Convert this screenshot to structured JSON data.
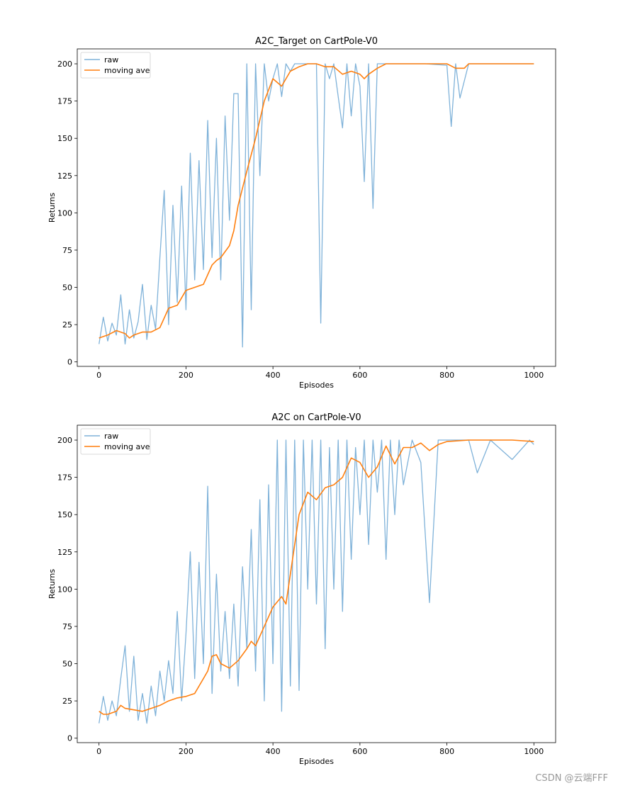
{
  "chart_data": [
    {
      "type": "line",
      "title": "A2C_Target on CartPole-V0",
      "xlabel": "Episodes",
      "ylabel": "Returns",
      "xlim": [
        -50,
        1050
      ],
      "ylim": [
        -3,
        210
      ],
      "xticks": [
        0,
        200,
        400,
        600,
        800,
        1000
      ],
      "yticks": [
        0,
        25,
        50,
        75,
        100,
        125,
        150,
        175,
        200
      ],
      "legend": {
        "position": "top-left",
        "entries": [
          "raw",
          "moving ave"
        ]
      },
      "colors": {
        "raw": "#7fb2d9",
        "moving_ave": "#ff7f0e"
      },
      "series": [
        {
          "name": "raw",
          "x": [
            0,
            10,
            20,
            30,
            40,
            50,
            60,
            70,
            80,
            90,
            100,
            110,
            120,
            130,
            140,
            150,
            160,
            170,
            180,
            190,
            200,
            210,
            220,
            230,
            240,
            250,
            260,
            270,
            280,
            290,
            300,
            310,
            320,
            330,
            340,
            350,
            360,
            370,
            380,
            390,
            400,
            410,
            420,
            430,
            440,
            450,
            460,
            470,
            480,
            490,
            500,
            510,
            520,
            530,
            540,
            550,
            560,
            570,
            580,
            590,
            600,
            610,
            620,
            630,
            640,
            650,
            700,
            750,
            800,
            810,
            820,
            830,
            850,
            900,
            950,
            1000
          ],
          "y": [
            12,
            30,
            14,
            26,
            18,
            45,
            12,
            35,
            16,
            27,
            52,
            15,
            38,
            22,
            70,
            115,
            25,
            105,
            40,
            118,
            35,
            140,
            55,
            135,
            62,
            162,
            70,
            150,
            55,
            165,
            95,
            180,
            180,
            10,
            200,
            35,
            200,
            125,
            200,
            175,
            190,
            200,
            178,
            200,
            195,
            200,
            200,
            200,
            200,
            200,
            200,
            26,
            200,
            190,
            200,
            178,
            157,
            200,
            165,
            200,
            185,
            121,
            200,
            103,
            200,
            200,
            200,
            200,
            199,
            158,
            200,
            177,
            200,
            200,
            200,
            200
          ]
        },
        {
          "name": "moving ave",
          "x": [
            0,
            20,
            40,
            60,
            70,
            80,
            100,
            120,
            140,
            160,
            180,
            200,
            220,
            240,
            260,
            270,
            280,
            300,
            310,
            320,
            340,
            360,
            380,
            400,
            420,
            440,
            460,
            480,
            500,
            520,
            540,
            560,
            580,
            600,
            610,
            620,
            640,
            660,
            700,
            750,
            800,
            820,
            840,
            850,
            900,
            950,
            1000
          ],
          "y": [
            16,
            18,
            21,
            19,
            16,
            18,
            20,
            20,
            23,
            36,
            38,
            48,
            50,
            52,
            65,
            68,
            70,
            78,
            88,
            105,
            128,
            150,
            175,
            190,
            185,
            195,
            198,
            200,
            200,
            198,
            198,
            193,
            195,
            193,
            190,
            193,
            197,
            200,
            200,
            200,
            200,
            197,
            197,
            200,
            200,
            200,
            200
          ]
        }
      ]
    },
    {
      "type": "line",
      "title": "A2C on CartPole-V0",
      "xlabel": "Episodes",
      "ylabel": "Returns",
      "xlim": [
        -50,
        1050
      ],
      "ylim": [
        -3,
        210
      ],
      "xticks": [
        0,
        200,
        400,
        600,
        800,
        1000
      ],
      "yticks": [
        0,
        25,
        50,
        75,
        100,
        125,
        150,
        175,
        200
      ],
      "legend": {
        "position": "top-left",
        "entries": [
          "raw",
          "moving ave"
        ]
      },
      "colors": {
        "raw": "#7fb2d9",
        "moving_ave": "#ff7f0e"
      },
      "series": [
        {
          "name": "raw",
          "x": [
            0,
            10,
            20,
            30,
            40,
            50,
            60,
            70,
            80,
            90,
            100,
            110,
            120,
            130,
            140,
            150,
            160,
            170,
            180,
            190,
            200,
            210,
            220,
            230,
            240,
            250,
            260,
            270,
            280,
            290,
            300,
            310,
            320,
            330,
            340,
            350,
            360,
            370,
            380,
            390,
            400,
            410,
            420,
            430,
            440,
            450,
            460,
            470,
            480,
            490,
            500,
            510,
            520,
            530,
            540,
            550,
            560,
            570,
            580,
            590,
            600,
            610,
            620,
            630,
            640,
            650,
            660,
            670,
            680,
            690,
            700,
            720,
            740,
            760,
            780,
            800,
            850,
            870,
            900,
            950,
            990,
            1000
          ],
          "y": [
            10,
            28,
            12,
            25,
            15,
            40,
            62,
            18,
            55,
            12,
            30,
            10,
            35,
            15,
            45,
            25,
            52,
            30,
            85,
            25,
            70,
            125,
            40,
            118,
            50,
            169,
            30,
            110,
            45,
            85,
            40,
            90,
            35,
            115,
            60,
            140,
            45,
            160,
            25,
            170,
            50,
            200,
            18,
            200,
            35,
            200,
            32,
            200,
            100,
            200,
            90,
            200,
            60,
            195,
            100,
            200,
            85,
            200,
            120,
            195,
            150,
            200,
            130,
            200,
            165,
            200,
            120,
            200,
            150,
            200,
            170,
            200,
            185,
            91,
            200,
            200,
            200,
            178,
            200,
            187,
            200,
            197
          ]
        },
        {
          "name": "moving ave",
          "x": [
            0,
            10,
            20,
            40,
            50,
            60,
            80,
            100,
            120,
            140,
            160,
            180,
            200,
            220,
            240,
            250,
            260,
            270,
            280,
            300,
            320,
            340,
            350,
            360,
            380,
            400,
            420,
            430,
            440,
            460,
            480,
            500,
            520,
            540,
            560,
            580,
            600,
            620,
            640,
            660,
            680,
            700,
            720,
            740,
            760,
            780,
            800,
            850,
            900,
            950,
            1000
          ],
          "y": [
            18,
            16,
            16,
            18,
            22,
            20,
            19,
            18,
            20,
            22,
            25,
            27,
            28,
            30,
            40,
            45,
            55,
            56,
            50,
            47,
            52,
            60,
            65,
            62,
            75,
            88,
            95,
            90,
            110,
            150,
            165,
            160,
            168,
            170,
            175,
            188,
            185,
            175,
            182,
            196,
            184,
            195,
            195,
            198,
            193,
            197,
            199,
            200,
            200,
            200,
            199
          ]
        }
      ]
    }
  ],
  "watermark": "CSDN @云端FFF"
}
